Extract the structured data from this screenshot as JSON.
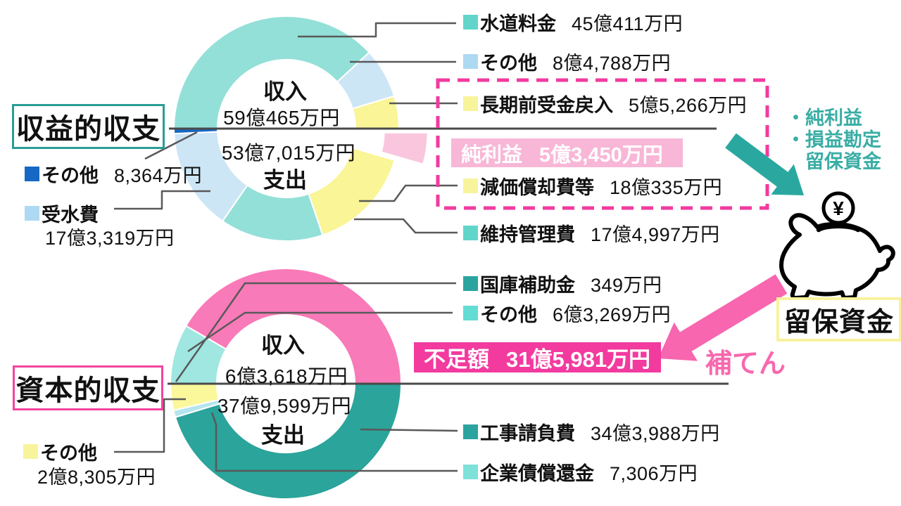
{
  "accent": {
    "teal_box_border": "#2a9d96",
    "pink_box_border": "#f3449f",
    "yellow_box_border": "#f9f29e",
    "dashed_box": "#f23a9e",
    "banner_profit_bg": "#f8b7d7",
    "banner_deficit_bg": "#f23a9f",
    "teal_arrow": "#2aa8a0",
    "pink_arrow": "#f766af",
    "teal_note_text": "#3aada5",
    "hoten_text": "#f768ae",
    "leader_line": "#595959",
    "divider_line": "#4a4a4a"
  },
  "titles": {
    "chart1": "収益的収支",
    "chart2": "資本的収支"
  },
  "reserve_box_label": "留保資金",
  "hoten_label": "補てん",
  "teal_note": "・純利益\n・損益勘定\n　留保資金",
  "coin_symbol": "¥",
  "chart_data": [
    {
      "type": "pie",
      "subtype": "half-income-half-expense-donut",
      "title": "収益的収支",
      "unit": "万円",
      "legend_position": "right-and-left",
      "center": {
        "income_label": "収入",
        "income_total": "59億465万円",
        "expense_label": "支出",
        "expense_total": "53億7,015万円"
      },
      "slices": [
        {
          "label": "水道料金",
          "amount_text": "45億411万円",
          "value": 450411,
          "side": "income",
          "color": "#93e0d8",
          "legend_color": "#62d5ca"
        },
        {
          "label": "その他",
          "amount_text": "8億4,788万円",
          "value": 84788,
          "side": "income",
          "color": "#cde6f6",
          "legend_color": "#aed9f2"
        },
        {
          "label": "長期前受金戻入",
          "amount_text": "5億5,266万円",
          "value": 55266,
          "side": "income",
          "color": "#faf596",
          "legend_color": "#f8f49c"
        },
        {
          "label": "純利益",
          "amount_text": "5億3,450万円",
          "value": 53450,
          "side": "balance",
          "color": "#f9c6de",
          "explode": 41
        },
        {
          "label": "減価償却費等",
          "amount_text": "18億335万円",
          "value": 180335,
          "side": "expense",
          "color": "#faf596",
          "legend_color": "#f8f49c"
        },
        {
          "label": "維持管理費",
          "amount_text": "17億4,997万円",
          "value": 174997,
          "side": "expense",
          "color": "#93e0d8",
          "legend_color": "#62d5ca"
        },
        {
          "label": "受水費",
          "amount_text": "17億3,319万円",
          "value": 173319,
          "side": "expense",
          "color": "#cde6f6",
          "legend_color": "#aed9f2"
        },
        {
          "label": "その他",
          "amount_text": "8,364万円",
          "value": 8364,
          "side": "expense",
          "color": "#1668c4",
          "legend_color": "#1668c4"
        }
      ]
    },
    {
      "type": "pie",
      "subtype": "half-income-half-expense-donut",
      "title": "資本的収支",
      "unit": "万円",
      "legend_position": "right-and-left",
      "center": {
        "income_label": "収入",
        "income_total": "6億3,618万円",
        "expense_label": "支出",
        "expense_total": "37億9,599万円"
      },
      "slices": [
        {
          "label": "国庫補助金",
          "amount_text": "349万円",
          "value": 349,
          "side": "income",
          "color": "#2ba49b",
          "legend_color": "#2ba4a0"
        },
        {
          "label": "その他",
          "amount_text": "6億3,269万円",
          "value": 63269,
          "side": "income",
          "color": "#9fe7e0",
          "legend_color": "#63dcd4"
        },
        {
          "label": "不足額",
          "amount_text": "31億5,981万円",
          "value": 315981,
          "side": "deficit",
          "color": "#f97ab8"
        },
        {
          "label": "工事請負費",
          "amount_text": "34億3,988万円",
          "value": 343988,
          "side": "expense",
          "color": "#2ba49b",
          "legend_color": "#2ba4a0"
        },
        {
          "label": "企業債償還金",
          "amount_text": "7,306万円",
          "value": 7306,
          "side": "expense",
          "color": "#b5e5ee",
          "legend_color": "#7ee1da"
        },
        {
          "label": "その他",
          "amount_text": "2億8,305万円",
          "value": 28305,
          "side": "expense",
          "color": "#fbf89c",
          "legend_color": "#f8f49c"
        }
      ]
    }
  ]
}
